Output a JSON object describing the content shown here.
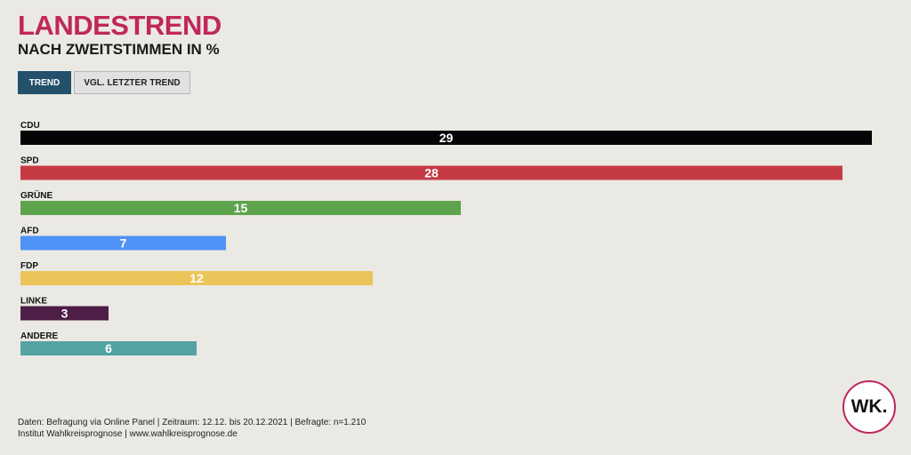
{
  "header": {
    "title": "LANDESTREND",
    "subtitle": "NACH ZWEITSTIMMEN IN %"
  },
  "tabs": [
    {
      "label": "TREND",
      "active": true
    },
    {
      "label": "VGL. LETZTER TREND",
      "active": false
    }
  ],
  "chart_data": {
    "type": "bar",
    "orientation": "horizontal",
    "categories": [
      "CDU",
      "SPD",
      "GRÜNE",
      "AFD",
      "FDP",
      "LINKE",
      "ANDERE"
    ],
    "values": [
      29,
      28,
      15,
      7,
      12,
      3,
      6
    ],
    "colors": [
      "#050505",
      "#c63a44",
      "#5ea44d",
      "#4f93f6",
      "#ebc55a",
      "#4e1e46",
      "#53a3a3"
    ],
    "xlim": [
      0,
      29
    ],
    "grid": false,
    "legend": "none"
  },
  "footer": {
    "line1": "Daten: Befragung via Online Panel | Zeitraum: 12.12. bis 20.12.2021 | Befragte: n=1.210",
    "line2": "Institut Wahlkreisprognose | www.wahlkreisprognose.de"
  },
  "logo": {
    "text": "WK.",
    "border_color": "#c0275a"
  }
}
